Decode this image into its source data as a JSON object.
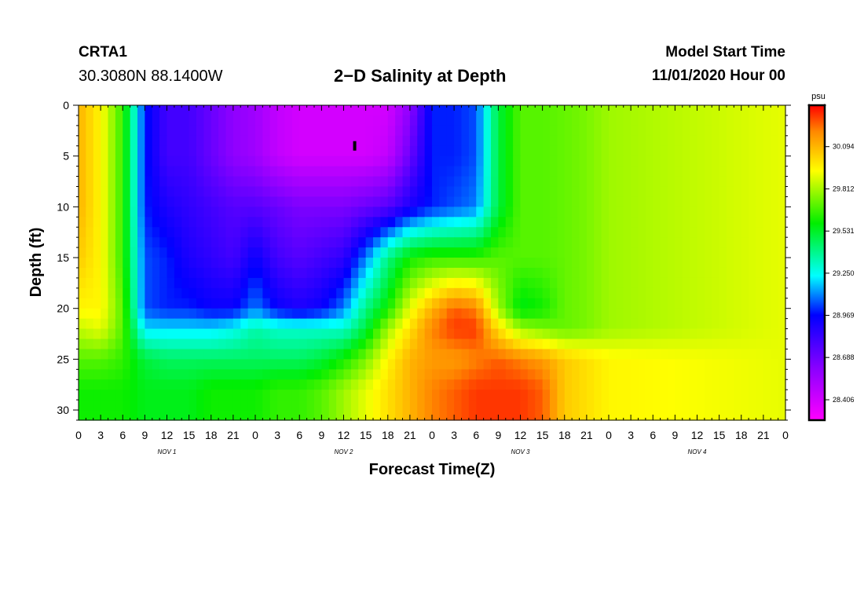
{
  "header": {
    "station": "CRTA1",
    "coordinates": "30.3080N 88.1400W",
    "title": "2−D Salinity at Depth",
    "model_start_label": "Model Start Time",
    "model_start_value": "11/01/2020 Hour 00"
  },
  "chart_data": {
    "type": "heatmap",
    "title": "2−D Salinity at Depth",
    "xlabel": "Forecast Time(Z)",
    "ylabel": "Depth (ft)",
    "x_ticks": [
      "0",
      "3",
      "6",
      "9",
      "12",
      "15",
      "18",
      "21",
      "0",
      "3",
      "6",
      "9",
      "12",
      "15",
      "18",
      "21",
      "0",
      "3",
      "6",
      "9",
      "12",
      "15",
      "18",
      "21",
      "0",
      "3",
      "6",
      "9",
      "12",
      "15",
      "18",
      "21",
      "0"
    ],
    "day_labels": [
      "NOV 1",
      "NOV 2",
      "NOV 3",
      "NOV 4"
    ],
    "xlim_hours": [
      0,
      96
    ],
    "y_ticks": [
      "0",
      "5",
      "10",
      "15",
      "20",
      "25",
      "30"
    ],
    "ylim": [
      0,
      31
    ],
    "y_inverted": true,
    "colorbar": {
      "unit": "psu",
      "labels": [
        "30.094",
        "29.812",
        "29.531",
        "29.250",
        "28.969",
        "28.688",
        "28.406"
      ],
      "ticks": [
        30.094,
        29.812,
        29.531,
        29.25,
        28.969,
        28.688,
        28.406
      ],
      "range": [
        28.27,
        30.37
      ]
    },
    "marker": {
      "hour": 37.5,
      "depth": 4
    },
    "grid_hours": [
      0,
      3,
      6,
      9,
      12,
      15,
      18,
      21,
      24,
      27,
      30,
      33,
      36,
      39,
      42,
      45,
      48,
      51,
      54,
      57,
      60,
      63,
      66,
      69,
      72,
      96
    ],
    "grid_depths": [
      0,
      5,
      10,
      15,
      20,
      22,
      25,
      28,
      31
    ],
    "grid_values": [
      [
        30.1,
        29.95,
        29.65,
        29.0,
        28.8,
        28.8,
        28.7,
        28.6,
        28.55,
        28.45,
        28.4,
        28.4,
        28.4,
        28.4,
        28.4,
        28.6,
        29.0,
        29.0,
        29.05,
        29.5,
        29.7,
        29.7,
        29.72,
        29.75,
        29.8,
        29.9
      ],
      [
        30.1,
        29.95,
        29.65,
        29.0,
        28.8,
        28.8,
        28.7,
        28.6,
        28.55,
        28.45,
        28.4,
        28.4,
        28.4,
        28.4,
        28.45,
        28.7,
        29.0,
        29.0,
        29.05,
        29.5,
        29.7,
        29.7,
        29.72,
        29.75,
        29.8,
        29.9
      ],
      [
        30.1,
        29.95,
        29.65,
        29.0,
        28.9,
        28.85,
        28.8,
        28.75,
        28.75,
        28.7,
        28.65,
        28.65,
        28.65,
        28.7,
        28.75,
        28.9,
        29.0,
        29.05,
        29.1,
        29.5,
        29.7,
        29.7,
        29.72,
        29.75,
        29.8,
        29.9
      ],
      [
        30.05,
        29.95,
        29.65,
        29.05,
        29.0,
        28.9,
        28.85,
        28.8,
        28.95,
        28.8,
        28.75,
        28.8,
        28.85,
        29.1,
        29.4,
        29.6,
        29.65,
        29.65,
        29.65,
        29.7,
        29.7,
        29.7,
        29.72,
        29.75,
        29.8,
        29.9
      ],
      [
        29.95,
        29.95,
        29.7,
        29.05,
        29.0,
        29.0,
        28.95,
        28.95,
        29.1,
        28.95,
        28.9,
        28.95,
        29.1,
        29.4,
        29.6,
        29.9,
        30.1,
        30.25,
        30.2,
        29.8,
        29.55,
        29.6,
        29.72,
        29.75,
        29.8,
        29.9
      ],
      [
        29.85,
        29.9,
        29.7,
        29.2,
        29.2,
        29.2,
        29.2,
        29.25,
        29.35,
        29.3,
        29.3,
        29.3,
        29.3,
        29.5,
        29.8,
        30.0,
        30.2,
        30.3,
        30.3,
        30.0,
        29.8,
        29.75,
        29.72,
        29.75,
        29.8,
        29.9
      ],
      [
        29.7,
        29.7,
        29.65,
        29.5,
        29.45,
        29.45,
        29.45,
        29.45,
        29.45,
        29.45,
        29.45,
        29.5,
        29.6,
        29.75,
        29.95,
        30.1,
        30.15,
        30.15,
        30.2,
        30.25,
        30.2,
        30.15,
        30.05,
        30.0,
        29.95,
        29.9
      ],
      [
        29.6,
        29.6,
        29.6,
        29.55,
        29.55,
        29.55,
        29.6,
        29.6,
        29.6,
        29.65,
        29.65,
        29.7,
        29.8,
        29.9,
        30.0,
        30.1,
        30.2,
        30.25,
        30.3,
        30.3,
        30.3,
        30.25,
        30.05,
        30.0,
        29.95,
        29.9
      ],
      [
        29.6,
        29.6,
        29.6,
        29.55,
        29.55,
        29.55,
        29.6,
        29.6,
        29.6,
        29.65,
        29.65,
        29.7,
        29.8,
        29.9,
        30.0,
        30.1,
        30.2,
        30.25,
        30.3,
        30.3,
        30.3,
        30.25,
        30.05,
        30.0,
        29.95,
        29.9
      ]
    ]
  }
}
